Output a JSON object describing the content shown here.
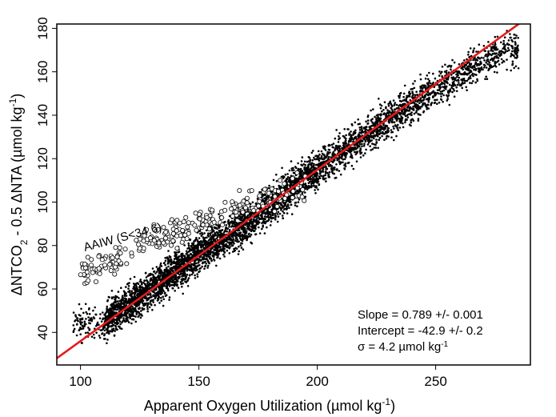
{
  "chart_data": {
    "type": "scatter",
    "xlabel": {
      "main": "Apparent Oxygen Utilization (µmol kg",
      "sup": "-1",
      "tail": ")"
    },
    "ylabel": {
      "pre": "ΔNTCO",
      "sub": "2",
      "mid": " - 0.5 ΔNTA (µmol kg",
      "sup": "-1",
      "tail": ")"
    },
    "xlim": [
      90,
      290
    ],
    "ylim": [
      25,
      182
    ],
    "x_ticks": [
      100,
      150,
      200,
      250
    ],
    "y_ticks": [
      40,
      60,
      80,
      100,
      120,
      140,
      160,
      180
    ],
    "grid": false,
    "fit_line": {
      "slope": 0.789,
      "intercept": -42.9,
      "color": "#e41a1c"
    },
    "series": [
      {
        "marker": "dot",
        "trend": [
          [
            110,
            45
          ],
          [
            130,
            60
          ],
          [
            150,
            76
          ],
          [
            170,
            90
          ],
          [
            190,
            107
          ],
          [
            210,
            123
          ],
          [
            230,
            138
          ],
          [
            250,
            152
          ],
          [
            270,
            165
          ],
          [
            285,
            172
          ]
        ],
        "x_range": [
          97,
          285
        ],
        "spread": 6
      },
      {
        "marker": "open-circle",
        "trend": [
          [
            100,
            68
          ],
          [
            115,
            74
          ],
          [
            130,
            82
          ],
          [
            145,
            88
          ],
          [
            160,
            95
          ],
          [
            175,
            100
          ],
          [
            190,
            106
          ]
        ],
        "x_range": [
          100,
          195
        ],
        "spread": 5
      }
    ],
    "annotations": {
      "region_label": "AAIW (S<34.6)",
      "slope_text": "Slope = 0.789 +/- 0.001",
      "intercept_text": "Intercept = -42.9 +/- 0.2",
      "sigma": {
        "main": "σ = 4.2 µmol kg",
        "sup": "-1"
      }
    }
  }
}
